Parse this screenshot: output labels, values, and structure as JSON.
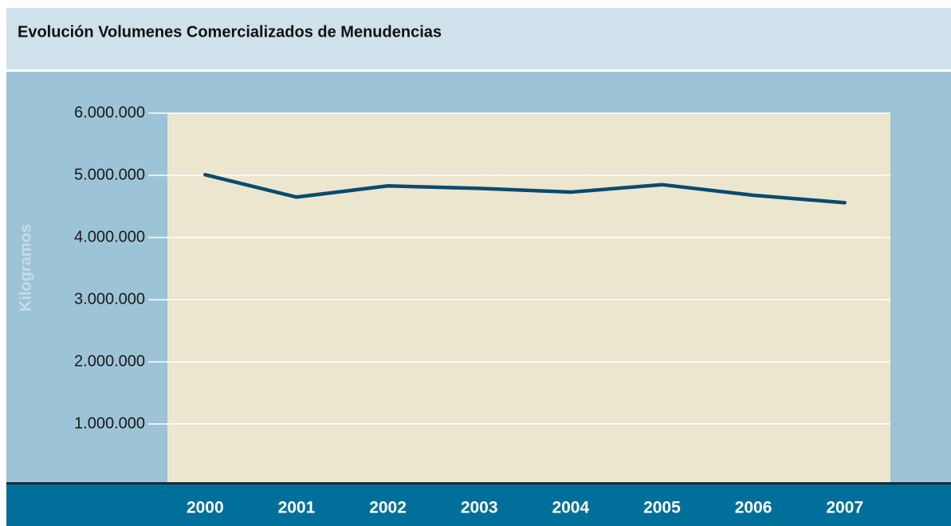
{
  "chart_data": {
    "type": "line",
    "title": "Evolución Volumenes Comercializados de Menudencias",
    "y_label": "Kilogramos",
    "categories": [
      "2000",
      "2001",
      "2002",
      "2003",
      "2004",
      "2005",
      "2006",
      "2007"
    ],
    "series": [
      {
        "name": "Menudencias",
        "color": "#0b4a70",
        "values": [
          5010000,
          4650000,
          4830000,
          4790000,
          4730000,
          4850000,
          4680000,
          4560000
        ]
      }
    ],
    "ylim": [
      0,
      6000000
    ],
    "yticks": [
      {
        "value": 1000000,
        "label": "1.000.000"
      },
      {
        "value": 2000000,
        "label": "2.000.000"
      },
      {
        "value": 3000000,
        "label": "3.000.000"
      },
      {
        "value": 4000000,
        "label": "4.000.000"
      },
      {
        "value": 5000000,
        "label": "5.000.000"
      },
      {
        "value": 6000000,
        "label": "6.000.000"
      }
    ],
    "grid": true
  }
}
